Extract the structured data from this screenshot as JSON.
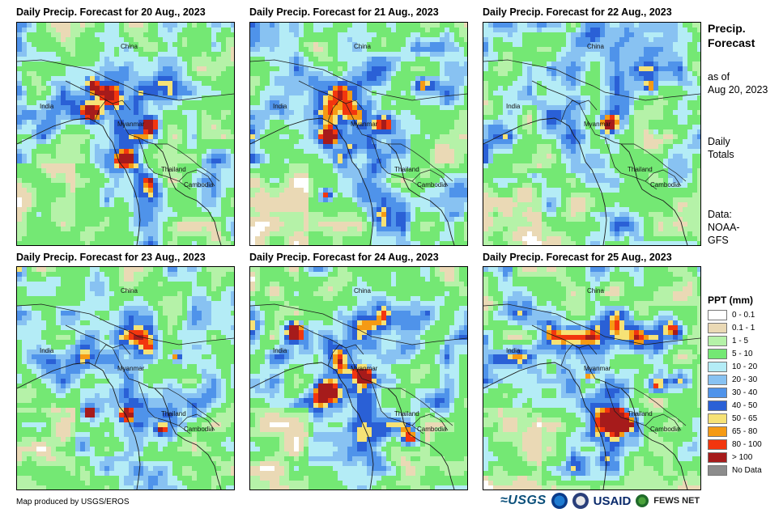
{
  "panels": [
    {
      "title": "Daily Precip. Forecast for 20 Aug., 2023",
      "seed": 11,
      "intensity": 1.0
    },
    {
      "title": "Daily Precip. Forecast for 21 Aug., 2023",
      "seed": 23,
      "intensity": 1.15
    },
    {
      "title": "Daily Precip. Forecast for 22 Aug., 2023",
      "seed": 37,
      "intensity": 0.85
    },
    {
      "title": "Daily Precip. Forecast for 23 Aug., 2023",
      "seed": 41,
      "intensity": 1.1
    },
    {
      "title": "Daily Precip. Forecast for 24 Aug., 2023",
      "seed": 53,
      "intensity": 1.35
    },
    {
      "title": "Daily Precip. Forecast for 25 Aug., 2023",
      "seed": 67,
      "intensity": 1.2
    }
  ],
  "place_labels": {
    "china": "China",
    "india": "India",
    "myanmar": "Myanmar",
    "thailand": "Thailand",
    "cambodia": "Cambodia"
  },
  "sidebar": {
    "title_line1": "Precip.",
    "title_line2": "Forecast",
    "asof_line1": "as of",
    "asof_line2": "Aug 20, 2023",
    "totals_line1": "Daily",
    "totals_line2": "Totals",
    "data_line1": "Data:",
    "data_line2": "NOAA-",
    "data_line3": "GFS"
  },
  "legend": {
    "title": "PPT (mm)",
    "items": [
      {
        "label": "0 - 0.1",
        "color": "#ffffff"
      },
      {
        "label": "0.1 - 1",
        "color": "#ead9b5"
      },
      {
        "label": "1 - 5",
        "color": "#b5f2a8"
      },
      {
        "label": "5 - 10",
        "color": "#74e874"
      },
      {
        "label": "10 - 20",
        "color": "#b4ecf6"
      },
      {
        "label": "20 - 30",
        "color": "#88c2f2"
      },
      {
        "label": "30 - 40",
        "color": "#4f93ea"
      },
      {
        "label": "40 - 50",
        "color": "#2a60d6"
      },
      {
        "label": "50 - 65",
        "color": "#f6e276"
      },
      {
        "label": "65 - 80",
        "color": "#f59a14"
      },
      {
        "label": "80 - 100",
        "color": "#f2360e"
      },
      {
        "label": "> 100",
        "color": "#a61b1b"
      },
      {
        "label": "No Data",
        "color": "#8c8c8c"
      }
    ]
  },
  "footer": {
    "credit": "Map produced by USGS/EROS",
    "logo_usgs": "≈USGS",
    "logo_usaid": "USAID",
    "logo_fews": "FEWS NET"
  }
}
